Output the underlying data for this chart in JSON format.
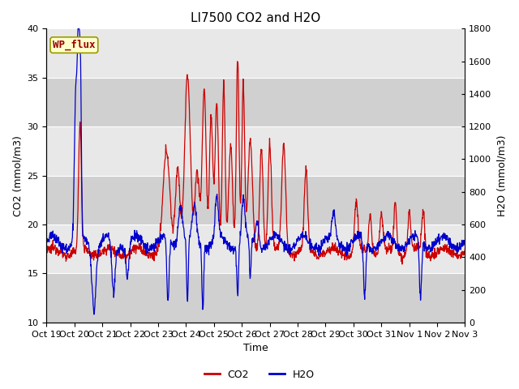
{
  "title": "LI7500 CO2 and H2O",
  "xlabel": "Time",
  "ylabel_left": "CO2 (mmol/m3)",
  "ylabel_right": "H2O (mmol/m3)",
  "ylim_left": [
    10,
    40
  ],
  "ylim_right": [
    0,
    1800
  ],
  "yticks_left": [
    10,
    15,
    20,
    25,
    30,
    35,
    40
  ],
  "yticks_right": [
    0,
    200,
    400,
    600,
    800,
    1000,
    1200,
    1400,
    1600,
    1800
  ],
  "x_tick_labels": [
    "Oct 19",
    "Oct 20",
    "Oct 21",
    "Oct 22",
    "Oct 23",
    "Oct 24",
    "Oct 25",
    "Oct 26",
    "Oct 27",
    "Oct 28",
    "Oct 29",
    "Oct 30",
    "Oct 31",
    "Nov 1",
    "Nov 2",
    "Nov 3"
  ],
  "annotation_text": "WP_flux",
  "plot_bg_color": "#e0e0e0",
  "co2_color": "#cc0000",
  "h2o_color": "#0000cc",
  "band_colors": [
    "#d0d0d0",
    "#e8e8e8"
  ],
  "band_edges_left": [
    10,
    15,
    20,
    25,
    30,
    35,
    40
  ],
  "title_fontsize": 11,
  "axis_fontsize": 9,
  "tick_fontsize": 8,
  "legend_fontsize": 9,
  "linewidth": 0.9
}
